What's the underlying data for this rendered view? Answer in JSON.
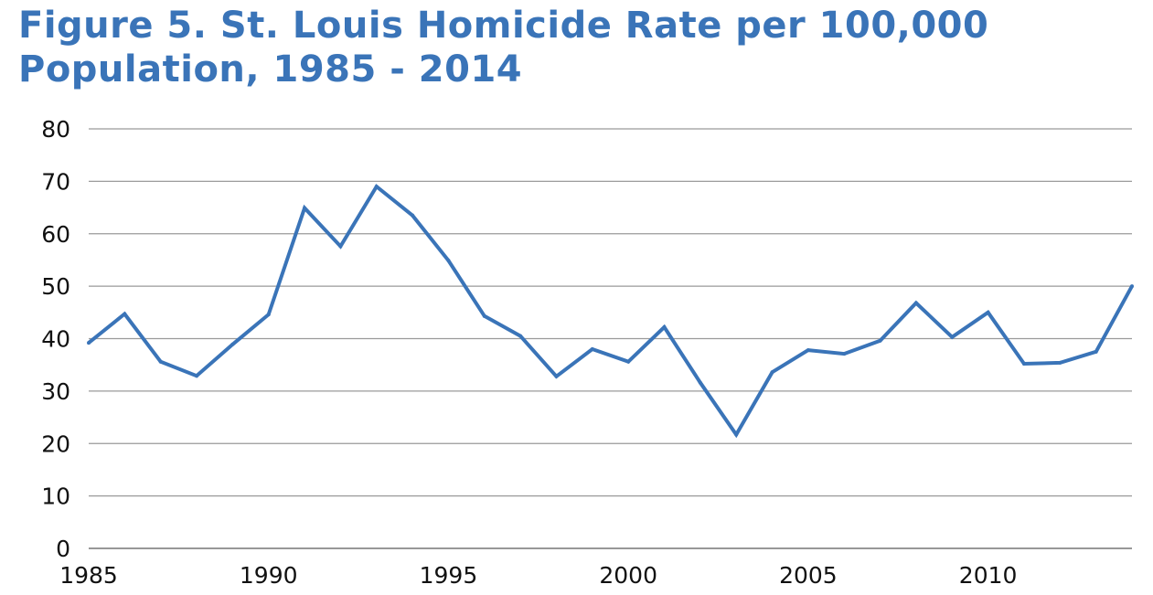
{
  "chart_data": {
    "type": "line",
    "title": "Figure 5. St. Louis Homicide Rate per 100,000 Population, 1985 - 2014",
    "xlabel": "",
    "ylabel": "",
    "xlim": [
      1985,
      2014
    ],
    "ylim": [
      0,
      80
    ],
    "y_ticks": [
      0,
      10,
      20,
      30,
      40,
      50,
      60,
      70,
      80
    ],
    "x_ticks": [
      1985,
      1990,
      1995,
      2000,
      2005,
      2010
    ],
    "grid": "horizontal",
    "legend": "none",
    "color": "#3a74b8",
    "series": [
      {
        "x": [
          1985,
          1986,
          1987,
          1988,
          1989,
          1990,
          1991,
          1992,
          1993,
          1994,
          1995,
          1996,
          1997,
          1998,
          1999,
          2000,
          2001,
          2002,
          2003,
          2004,
          2005,
          2006,
          2007,
          2008,
          2009,
          2010,
          2011,
          2012,
          2013,
          2014
        ],
        "values": [
          39.2,
          44.7,
          35.6,
          32.9,
          38.9,
          44.6,
          64.9,
          57.6,
          69.0,
          63.5,
          54.9,
          44.3,
          40.5,
          32.8,
          38.0,
          35.6,
          42.2,
          31.6,
          21.7,
          33.6,
          37.8,
          37.1,
          39.6,
          46.8,
          40.3,
          45.0,
          35.2,
          35.4,
          37.5,
          50.0
        ]
      }
    ]
  }
}
